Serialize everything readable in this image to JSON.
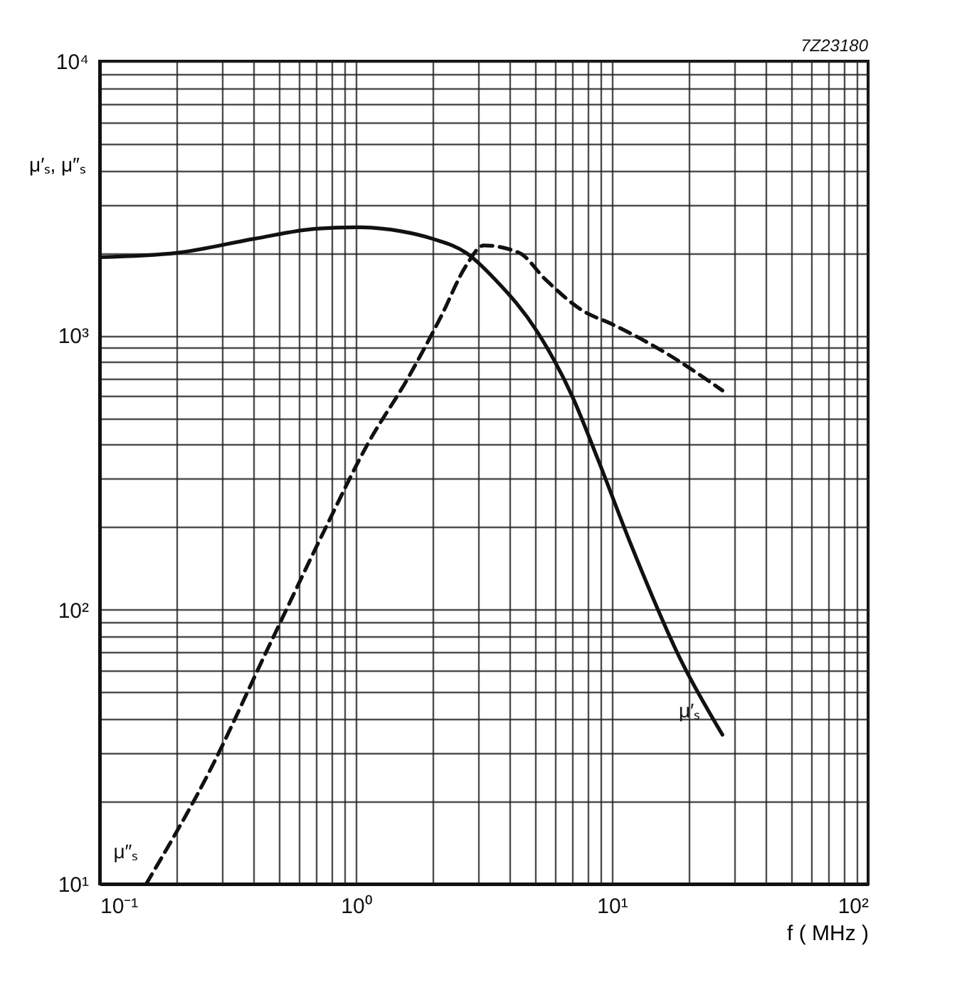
{
  "chart_data": {
    "type": "line",
    "xlabel": "f ( MHz )",
    "ylabel": "μ′ₛ, μ″ₛ",
    "log": "xy",
    "grid": true,
    "legend": false,
    "annotations": [
      "7Z23180"
    ],
    "xlim": [
      0.1,
      100
    ],
    "ylim": [
      10,
      10000
    ],
    "xticks": [
      {
        "value": 0.1,
        "label": "10⁻¹"
      },
      {
        "value": 0.2,
        "label": null
      },
      {
        "value": 0.3,
        "label": null
      },
      {
        "value": 0.4,
        "label": null
      },
      {
        "value": 0.5,
        "label": null
      },
      {
        "value": 0.6,
        "label": null
      },
      {
        "value": 0.7,
        "label": null
      },
      {
        "value": 0.8,
        "label": null
      },
      {
        "value": 0.9,
        "label": null
      },
      {
        "value": 1,
        "label": "10⁰"
      },
      {
        "value": 2,
        "label": null
      },
      {
        "value": 3,
        "label": null
      },
      {
        "value": 4,
        "label": null
      },
      {
        "value": 5,
        "label": null
      },
      {
        "value": 6,
        "label": null
      },
      {
        "value": 7,
        "label": null
      },
      {
        "value": 8,
        "label": null
      },
      {
        "value": 9,
        "label": null
      },
      {
        "value": 10,
        "label": "10¹"
      },
      {
        "value": 20,
        "label": null
      },
      {
        "value": 30,
        "label": null
      },
      {
        "value": 40,
        "label": null
      },
      {
        "value": 50,
        "label": null
      },
      {
        "value": 60,
        "label": null
      },
      {
        "value": 70,
        "label": null
      },
      {
        "value": 80,
        "label": null
      },
      {
        "value": 90,
        "label": null
      },
      {
        "value": 100,
        "label": "10²"
      }
    ],
    "yticks": [
      {
        "value": 10,
        "label": "10¹"
      },
      {
        "value": 20,
        "label": null
      },
      {
        "value": 30,
        "label": null
      },
      {
        "value": 40,
        "label": null
      },
      {
        "value": 50,
        "label": null
      },
      {
        "value": 60,
        "label": null
      },
      {
        "value": 70,
        "label": null
      },
      {
        "value": 80,
        "label": null
      },
      {
        "value": 90,
        "label": null
      },
      {
        "value": 100,
        "label": "10²"
      },
      {
        "value": 200,
        "label": null
      },
      {
        "value": 300,
        "label": null
      },
      {
        "value": 400,
        "label": null
      },
      {
        "value": 500,
        "label": null
      },
      {
        "value": 600,
        "label": null
      },
      {
        "value": 700,
        "label": null
      },
      {
        "value": 800,
        "label": null
      },
      {
        "value": 900,
        "label": null
      },
      {
        "value": 1000,
        "label": "10³"
      },
      {
        "value": 2000,
        "label": null
      },
      {
        "value": 3000,
        "label": null
      },
      {
        "value": 4000,
        "label": null
      },
      {
        "value": 5000,
        "label": null
      },
      {
        "value": 6000,
        "label": null
      },
      {
        "value": 7000,
        "label": null
      },
      {
        "value": 8000,
        "label": null
      },
      {
        "value": 9000,
        "label": null
      },
      {
        "value": 10000,
        "label": "10⁴"
      }
    ],
    "series": [
      {
        "name": "μ′ₛ",
        "color": "#111111",
        "line_style": "solid",
        "x": [
          0.1,
          0.2,
          0.4,
          0.7,
          1,
          1.5,
          2,
          2.7,
          3.5,
          5.1,
          7,
          8.8,
          11.8,
          18.5,
          27
        ],
        "values": [
          1930,
          2000,
          2250,
          2450,
          2480,
          2400,
          2250,
          2000,
          1600,
          1035,
          600,
          355,
          175,
          66,
          35
        ]
      },
      {
        "name": "μ″ₛ",
        "color": "#111111",
        "line_style": "dashed",
        "x": [
          0.152,
          0.27,
          0.45,
          0.755,
          1.11,
          1.6,
          2.15,
          2.7,
          3.16,
          4.35,
          5.5,
          7.7,
          10,
          16,
          27
        ],
        "values": [
          10,
          26,
          71,
          195,
          400,
          700,
          1170,
          1800,
          2130,
          2000,
          1600,
          1230,
          1100,
          870,
          630
        ]
      }
    ]
  }
}
